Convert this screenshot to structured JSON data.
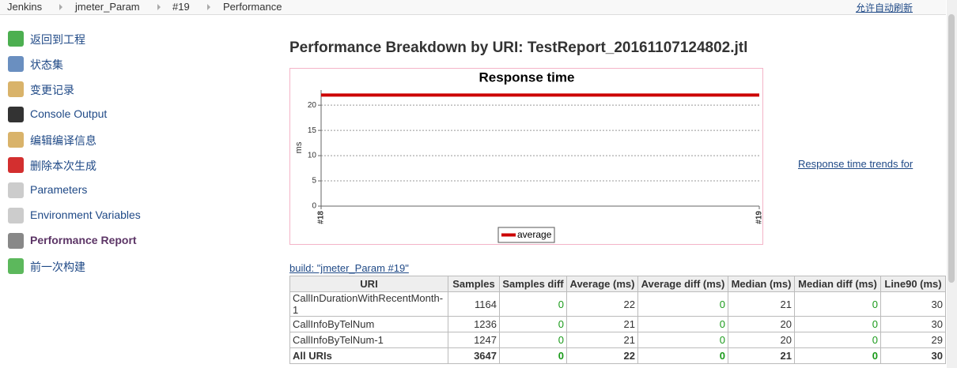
{
  "breadcrumbs": [
    "Jenkins",
    "jmeter_Param",
    "#19",
    "Performance"
  ],
  "auto_refresh": "允许自动刷新",
  "sidebar": [
    "返回到工程",
    "状态集",
    "变更记录",
    "Console Output",
    "编辑编译信息",
    "删除本次生成",
    "Parameters",
    "Environment Variables",
    "Performance Report",
    "前一次构建"
  ],
  "heading": "Performance Breakdown by URI: TestReport_20161107124802.jtl",
  "chart_data": {
    "type": "line",
    "title": "Response time",
    "y_label": "ms",
    "categories": [
      "#18",
      "#19"
    ],
    "series": [
      {
        "name": "average",
        "color": "#cc0000",
        "values": [
          22,
          22
        ]
      }
    ],
    "ylim": [
      0,
      23
    ],
    "yticks": [
      0,
      5,
      10,
      15,
      20
    ],
    "grid": true
  },
  "trend_link": "Response time trends for",
  "build_link": "build: \"jmeter_Param #19\"",
  "table": {
    "columns": [
      "URI",
      "Samples",
      "Samples diff",
      "Average (ms)",
      "Average diff (ms)",
      "Median (ms)",
      "Median diff (ms)",
      "Line90 (ms)"
    ],
    "rows": [
      [
        "CallInDurationWithRecentMonth-1",
        1164,
        0,
        22,
        0,
        21,
        0,
        30
      ],
      [
        "CallInfoByTelNum",
        1236,
        0,
        21,
        0,
        20,
        0,
        30
      ],
      [
        "CallInfoByTelNum-1",
        1247,
        0,
        21,
        0,
        20,
        0,
        29
      ],
      [
        "All URIs",
        3647,
        0,
        22,
        0,
        21,
        0,
        30
      ]
    ]
  }
}
